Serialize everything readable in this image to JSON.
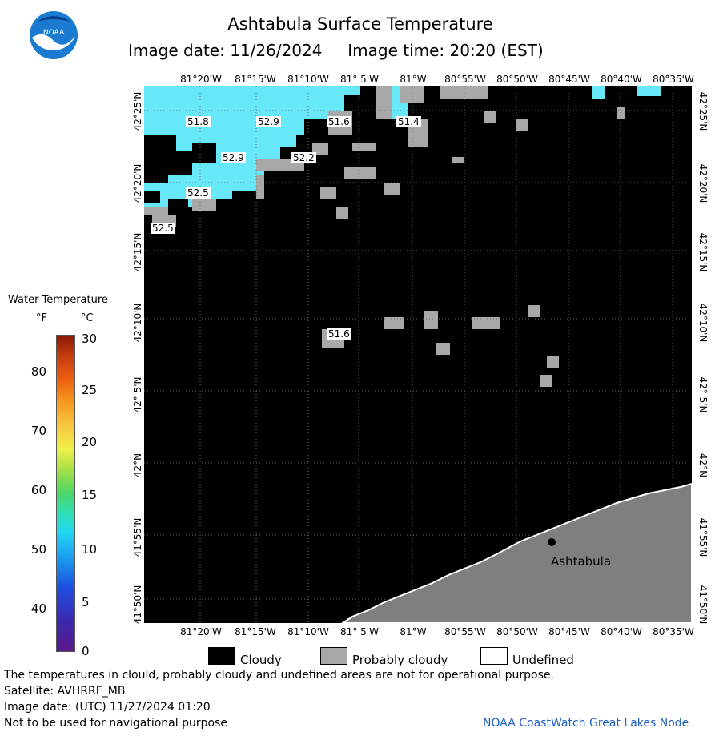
{
  "title": "Ashtabula Surface Temperature",
  "subtitle": "Image date: 11/26/2024     Image time: 20:20 (EST)",
  "logo": {
    "icon": "noaa-logo-icon",
    "text": "NOAA"
  },
  "map": {
    "lon_labels": [
      "81°20'W",
      "81°15'W",
      "81°10'W",
      "81° 5'W",
      "81°W",
      "80°55'W",
      "80°50'W",
      "80°45'W",
      "80°40'W",
      "80°35'W"
    ],
    "lat_labels": [
      "42°25'N",
      "42°20'N",
      "42°15'N",
      "42°10'N",
      "42° 5'N",
      "42°N",
      "41°55'N",
      "41°50'N"
    ],
    "city": "Ashtabula",
    "temperature_labels": [
      "51.8",
      "52.9",
      "51.6",
      "51.4",
      "52.9",
      "52.2",
      "52.5",
      "52.5",
      "51.6"
    ],
    "colors": {
      "cloudy": "#000000",
      "probably_cloudy": "#a8a8a8",
      "land": "#7f7f7f",
      "water": "#66e8f8"
    }
  },
  "legend": {
    "title": "Water Temperature",
    "unit_f": "°F",
    "unit_c": "°C",
    "f_ticks": [
      "80",
      "70",
      "60",
      "50",
      "40"
    ],
    "c_ticks": [
      "30",
      "25",
      "20",
      "15",
      "10",
      "5",
      "0"
    ],
    "range_c": [
      0,
      30
    ]
  },
  "key": {
    "cloudy": "Cloudy",
    "probably_cloudy": "Probably cloudy",
    "undefined": "Undefined"
  },
  "footer": {
    "note": "The temperatures in clould, probably cloudy and undefined areas are not for operational purpose.",
    "satellite": "Satellite: AVHRRF_MB",
    "utc_date": "Image date: (UTC) 11/27/2024  01:20",
    "disclaimer": "Not to be used for navigational purpose",
    "credit": "NOAA CoastWatch Great Lakes Node"
  }
}
